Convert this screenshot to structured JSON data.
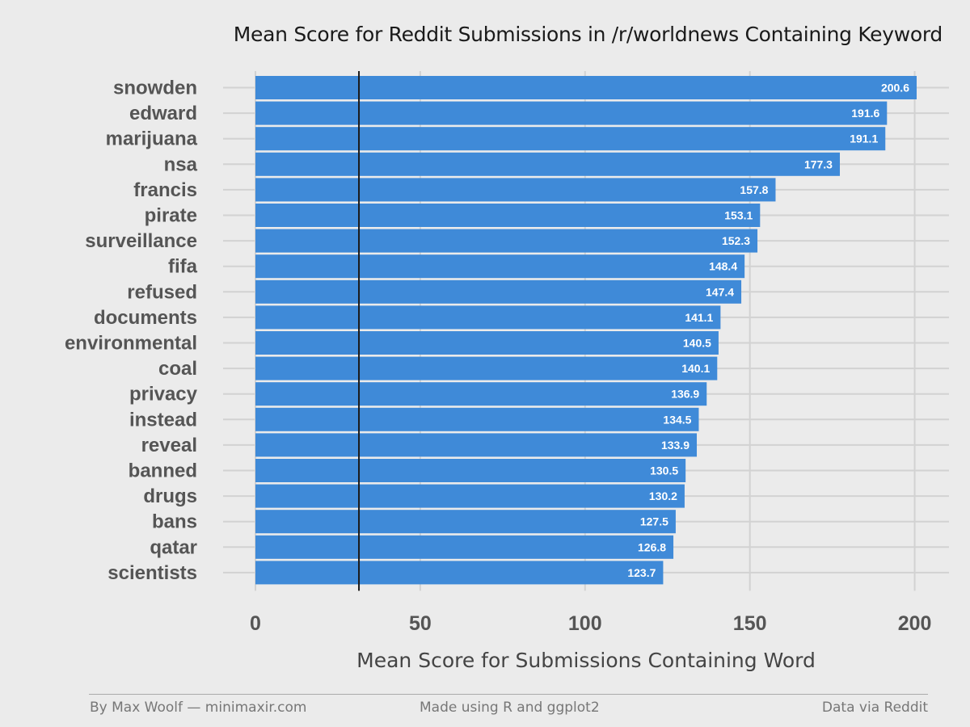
{
  "chart_data": {
    "type": "bar",
    "orientation": "horizontal",
    "title": "Mean Score for Reddit Submissions in /r/worldnews Containing Keyword",
    "xlabel": "Mean Score for Submissions Containing Word",
    "ylabel": "",
    "categories": [
      "snowden",
      "edward",
      "marijuana",
      "nsa",
      "francis",
      "pirate",
      "surveillance",
      "fifa",
      "refused",
      "documents",
      "environmental",
      "coal",
      "privacy",
      "instead",
      "reveal",
      "banned",
      "drugs",
      "bans",
      "qatar",
      "scientists"
    ],
    "values": [
      200.6,
      191.6,
      191.1,
      177.3,
      157.8,
      153.1,
      152.3,
      148.4,
      147.4,
      141.1,
      140.5,
      140.1,
      136.9,
      134.5,
      133.9,
      130.5,
      130.2,
      127.5,
      126.8,
      123.7
    ],
    "value_labels": [
      "200.6",
      "191.6",
      "191.1",
      "177.3",
      "157.8",
      "153.1",
      "152.3",
      "148.4",
      "147.4",
      "141.1",
      "140.5",
      "140.1",
      "136.9",
      "134.5",
      "133.9",
      "130.5",
      "130.2",
      "127.5",
      "126.8",
      "123.7"
    ],
    "xticks": [
      0,
      50,
      100,
      150,
      200
    ],
    "xtick_labels": [
      "0",
      "50",
      "100",
      "150",
      "200"
    ],
    "xlim": [
      0,
      200.6
    ],
    "reference_line": 31.4,
    "grid": true,
    "bar_color": "#3f8ad8",
    "reference_line_color": "#1a1a1a"
  },
  "footer": {
    "left": "By Max Woolf — minimaxir.com",
    "center": "Made using R and ggplot2",
    "right": "Data via Reddit"
  }
}
